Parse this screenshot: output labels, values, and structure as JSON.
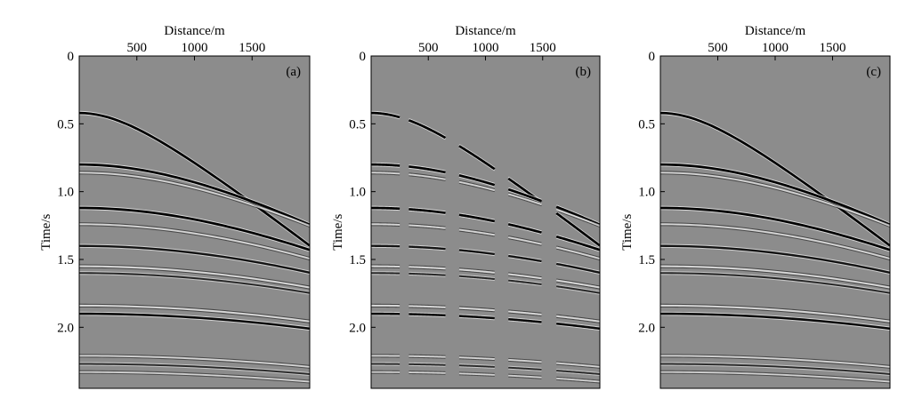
{
  "chart_data": [
    {
      "type": "heatmap",
      "panel_label": "(a)",
      "xlabel": "Distance/m",
      "ylabel": "Time/s",
      "x_ticks": [
        500,
        1000,
        1500
      ],
      "x_tick_labels": [
        "500",
        "1000",
        "1500"
      ],
      "y_ticks": [
        0,
        0.5,
        1.0,
        1.5,
        2.0
      ],
      "y_tick_labels": [
        "0",
        "0.5",
        "1.0",
        "1.5",
        "2.0"
      ],
      "xlim": [
        0,
        2000
      ],
      "ylim": [
        0,
        2.45
      ],
      "x_axis_position": "top",
      "colormap": "gray",
      "background_color": "#8c8c8c",
      "mode": "full",
      "events": [
        {
          "t0": 0.42,
          "v": 1500,
          "polarity": 1,
          "strength": 1.0
        },
        {
          "t0": 0.8,
          "v": 2100,
          "polarity": 1,
          "strength": 1.0
        },
        {
          "t0": 0.86,
          "v": 2200,
          "polarity": -1,
          "strength": 0.5
        },
        {
          "t0": 1.12,
          "v": 2250,
          "polarity": 1,
          "strength": 1.0
        },
        {
          "t0": 1.24,
          "v": 2400,
          "polarity": -1,
          "strength": 0.55
        },
        {
          "t0": 1.4,
          "v": 2600,
          "polarity": 1,
          "strength": 0.8
        },
        {
          "t0": 1.55,
          "v": 2800,
          "polarity": -1,
          "strength": 0.6
        },
        {
          "t0": 1.6,
          "v": 2850,
          "polarity": 1,
          "strength": 0.55
        },
        {
          "t0": 1.84,
          "v": 3000,
          "polarity": -1,
          "strength": 0.6
        },
        {
          "t0": 1.9,
          "v": 3050,
          "polarity": 1,
          "strength": 0.9
        },
        {
          "t0": 2.21,
          "v": 3300,
          "polarity": -1,
          "strength": 0.5
        },
        {
          "t0": 2.27,
          "v": 3400,
          "polarity": 1,
          "strength": 0.5
        },
        {
          "t0": 2.33,
          "v": 3450,
          "polarity": -1,
          "strength": 0.45
        }
      ]
    },
    {
      "type": "heatmap",
      "panel_label": "(b)",
      "xlabel": "Distance/m",
      "ylabel": "Time/s",
      "x_ticks": [
        500,
        1000,
        1500
      ],
      "x_tick_labels": [
        "500",
        "1000",
        "1500"
      ],
      "y_ticks": [
        0,
        0.5,
        1.0,
        1.5,
        2.0
      ],
      "y_tick_labels": [
        "0",
        "0.5",
        "1.0",
        "1.5",
        "2.0"
      ],
      "xlim": [
        0,
        2000
      ],
      "ylim": [
        0,
        2.45
      ],
      "x_axis_position": "top",
      "colormap": "gray",
      "background_color": "#8c8c8c",
      "mode": "gapped",
      "trace_groups": [
        [
          0,
          250
        ],
        [
          330,
          650
        ],
        [
          770,
          1080
        ],
        [
          1200,
          1490
        ],
        [
          1620,
          2000
        ]
      ],
      "events": [
        {
          "t0": 0.42,
          "v": 1500,
          "polarity": 1,
          "strength": 1.0
        },
        {
          "t0": 0.8,
          "v": 2100,
          "polarity": 1,
          "strength": 1.0
        },
        {
          "t0": 0.86,
          "v": 2200,
          "polarity": -1,
          "strength": 0.5
        },
        {
          "t0": 1.12,
          "v": 2250,
          "polarity": 1,
          "strength": 1.0
        },
        {
          "t0": 1.24,
          "v": 2400,
          "polarity": -1,
          "strength": 0.55
        },
        {
          "t0": 1.4,
          "v": 2600,
          "polarity": 1,
          "strength": 0.8
        },
        {
          "t0": 1.55,
          "v": 2800,
          "polarity": -1,
          "strength": 0.6
        },
        {
          "t0": 1.6,
          "v": 2850,
          "polarity": 1,
          "strength": 0.55
        },
        {
          "t0": 1.84,
          "v": 3000,
          "polarity": -1,
          "strength": 0.6
        },
        {
          "t0": 1.9,
          "v": 3050,
          "polarity": 1,
          "strength": 0.9
        },
        {
          "t0": 2.21,
          "v": 3300,
          "polarity": -1,
          "strength": 0.5
        },
        {
          "t0": 2.27,
          "v": 3400,
          "polarity": 1,
          "strength": 0.5
        },
        {
          "t0": 2.33,
          "v": 3450,
          "polarity": -1,
          "strength": 0.45
        }
      ]
    },
    {
      "type": "heatmap",
      "panel_label": "(c)",
      "xlabel": "Distance/m",
      "ylabel": "Time/s",
      "x_ticks": [
        500,
        1000,
        1500
      ],
      "x_tick_labels": [
        "500",
        "1000",
        "1500"
      ],
      "y_ticks": [
        0,
        0.5,
        1.0,
        1.5,
        2.0
      ],
      "y_tick_labels": [
        "0",
        "0.5",
        "1.0",
        "1.5",
        "2.0"
      ],
      "xlim": [
        0,
        2000
      ],
      "ylim": [
        0,
        2.45
      ],
      "x_axis_position": "top",
      "colormap": "gray",
      "background_color": "#8c8c8c",
      "mode": "full",
      "events": [
        {
          "t0": 0.42,
          "v": 1500,
          "polarity": 1,
          "strength": 1.0
        },
        {
          "t0": 0.8,
          "v": 2100,
          "polarity": 1,
          "strength": 1.0
        },
        {
          "t0": 0.86,
          "v": 2200,
          "polarity": -1,
          "strength": 0.5
        },
        {
          "t0": 1.12,
          "v": 2250,
          "polarity": 1,
          "strength": 1.0
        },
        {
          "t0": 1.24,
          "v": 2400,
          "polarity": -1,
          "strength": 0.55
        },
        {
          "t0": 1.4,
          "v": 2600,
          "polarity": 1,
          "strength": 0.8
        },
        {
          "t0": 1.55,
          "v": 2800,
          "polarity": -1,
          "strength": 0.6
        },
        {
          "t0": 1.6,
          "v": 2850,
          "polarity": 1,
          "strength": 0.55
        },
        {
          "t0": 1.84,
          "v": 3000,
          "polarity": -1,
          "strength": 0.6
        },
        {
          "t0": 1.9,
          "v": 3050,
          "polarity": 1,
          "strength": 0.9
        },
        {
          "t0": 2.21,
          "v": 3300,
          "polarity": -1,
          "strength": 0.5
        },
        {
          "t0": 2.27,
          "v": 3400,
          "polarity": 1,
          "strength": 0.5
        },
        {
          "t0": 2.33,
          "v": 3450,
          "polarity": -1,
          "strength": 0.45
        }
      ]
    }
  ]
}
